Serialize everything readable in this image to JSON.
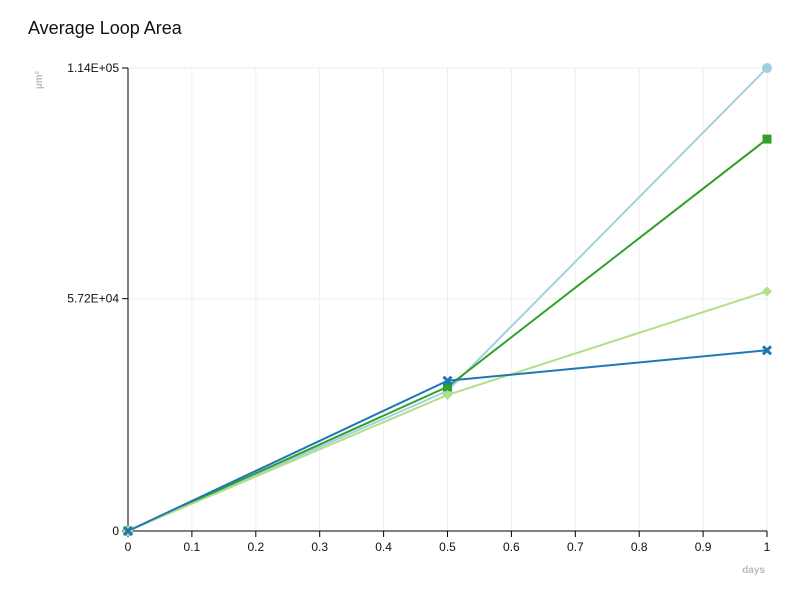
{
  "chart_data": {
    "type": "line",
    "title": "Average Loop Area",
    "xlabel": "days",
    "ylabel": "µm²",
    "xlim": [
      0,
      1
    ],
    "ylim": [
      0,
      114000
    ],
    "x_ticks": [
      0,
      0.1,
      0.2,
      0.3,
      0.4,
      0.5,
      0.6,
      0.7,
      0.8,
      0.9,
      1
    ],
    "x_tick_labels": [
      "0",
      "0.1",
      "0.2",
      "0.3",
      "0.4",
      "0.5",
      "0.6",
      "0.7",
      "0.8",
      "0.9",
      "1"
    ],
    "y_ticks": [
      0,
      57200,
      114000
    ],
    "y_tick_labels": [
      "0",
      "5.72E+04",
      "1.14E+05"
    ],
    "grid": true,
    "x": [
      0,
      0.5,
      1
    ],
    "series": [
      {
        "values": [
          0,
          34500,
          114000
        ],
        "color": "#a6cee3",
        "marker": "circle"
      },
      {
        "values": [
          0,
          35500,
          96500
        ],
        "color": "#33a02c",
        "marker": "square"
      },
      {
        "values": [
          0,
          33500,
          59000
        ],
        "color": "#b2df8a",
        "marker": "diamond"
      },
      {
        "values": [
          0,
          37000,
          44500
        ],
        "color": "#1f78b4",
        "marker": "x"
      }
    ]
  }
}
